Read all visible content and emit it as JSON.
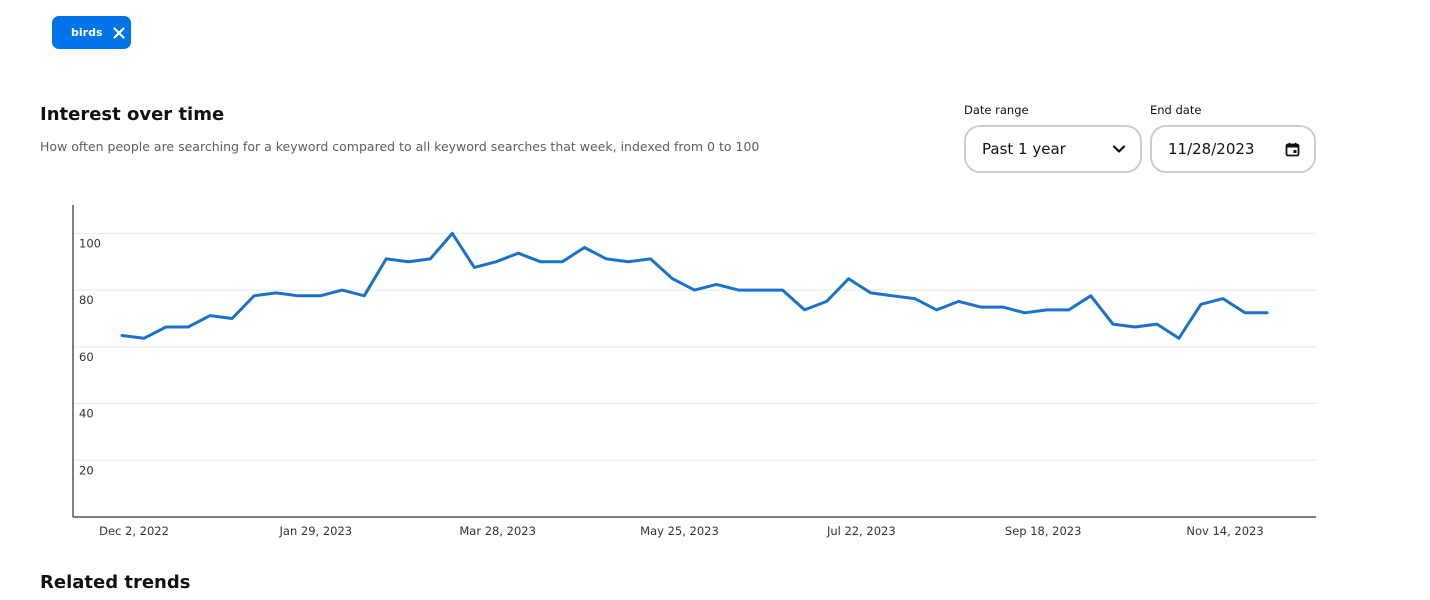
{
  "filter_chip": {
    "label": "birds",
    "close_icon": "close-icon",
    "color": "#0074e8"
  },
  "section": {
    "title": "Interest over time",
    "subtitle": "How often people are searching for a keyword compared to all keyword searches that week, indexed from 0 to 100"
  },
  "date_range": {
    "label": "Date range",
    "value": "Past 1 year",
    "icon": "chevron-down-icon"
  },
  "end_date": {
    "label": "End date",
    "value": "11/28/2023",
    "icon": "calendar-icon"
  },
  "chart_data": {
    "type": "line",
    "title": "",
    "xlabel": "",
    "ylabel": "",
    "ylim": [
      0,
      110
    ],
    "yticks": [
      20,
      40,
      60,
      80,
      100
    ],
    "xtick_labels": [
      "Dec 2, 2022",
      "Jan 29, 2023",
      "Mar 28, 2023",
      "May 25, 2023",
      "Jul 22, 2023",
      "Sep 18, 2023",
      "Nov 14, 2023"
    ],
    "grid": true,
    "line_color": "#1a73c8",
    "series": [
      {
        "values": [
          64,
          63,
          67,
          67,
          71,
          70,
          78,
          79,
          78,
          78,
          80,
          78,
          91,
          90,
          91,
          100,
          88,
          90,
          93,
          90,
          90,
          95,
          91,
          90,
          91,
          84,
          80,
          82,
          80,
          80,
          80,
          73,
          76,
          84,
          79,
          78,
          77,
          73,
          76,
          74,
          74,
          72,
          73,
          73,
          78,
          68,
          67,
          68,
          63,
          75,
          77,
          72,
          72
        ]
      }
    ]
  },
  "related": {
    "title": "Related trends"
  }
}
